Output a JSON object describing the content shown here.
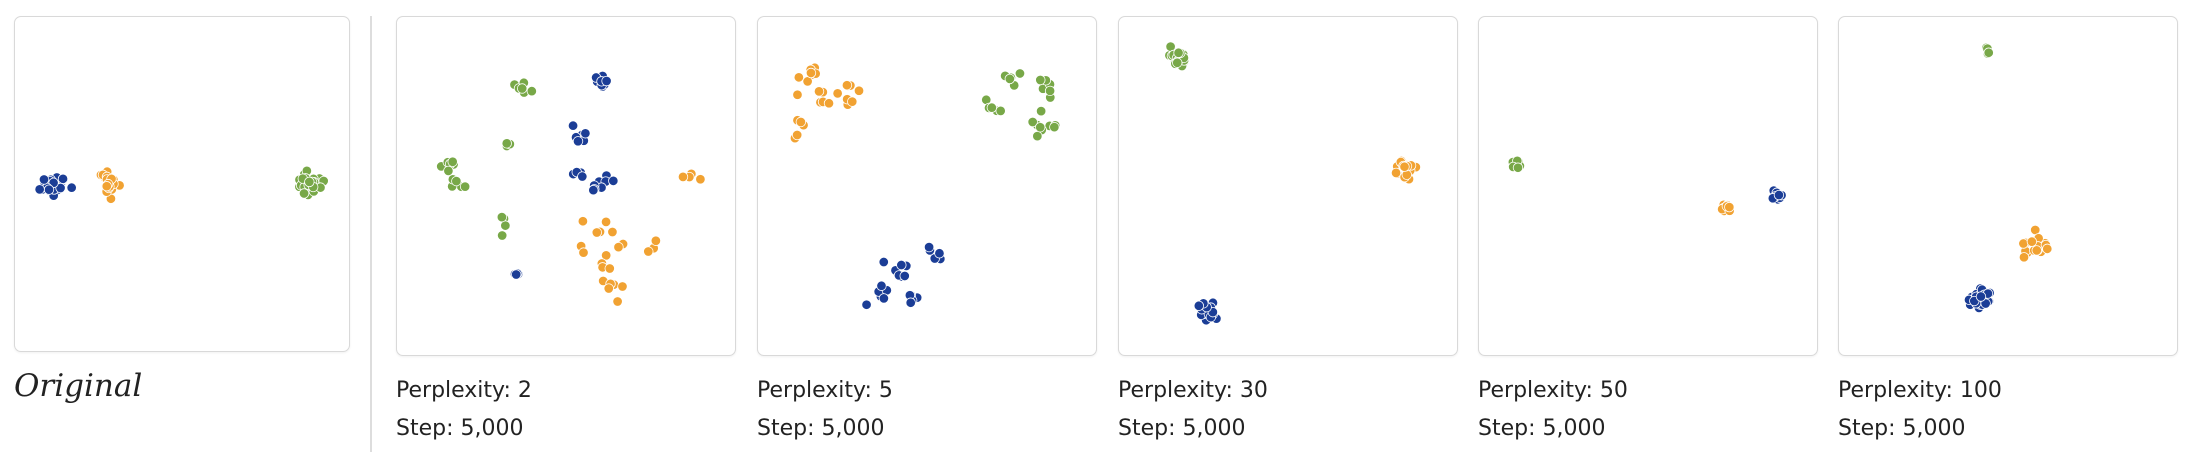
{
  "colors": {
    "blue": "#1b3d96",
    "orange": "#f1a232",
    "green": "#78a848",
    "panel_border": "#d9d9d9"
  },
  "original": {
    "label": "Original"
  },
  "chart_data": [
    {
      "id": "original",
      "type": "scatter",
      "title": "Original",
      "xlim": [
        0,
        1
      ],
      "ylim": [
        0,
        1
      ],
      "grid": false,
      "series": [
        {
          "color_key": "blue",
          "x": [
            0.12
          ],
          "y": [
            0.5
          ],
          "spread": [
            0.035
          ],
          "count": [
            26
          ]
        },
        {
          "color_key": "orange",
          "x": [
            0.28
          ],
          "y": [
            0.5
          ],
          "spread": [
            0.035
          ],
          "count": [
            26
          ]
        },
        {
          "color_key": "green",
          "x": [
            0.88
          ],
          "y": [
            0.5
          ],
          "spread": [
            0.035
          ],
          "count": [
            26
          ]
        }
      ]
    },
    {
      "id": "perp-2",
      "type": "scatter",
      "perplexity_label": "Perplexity: 2",
      "step_label": "Step: 5,000",
      "xlim": [
        0,
        1
      ],
      "ylim": [
        0,
        1
      ],
      "grid": false,
      "series": [
        {
          "color_key": "blue",
          "x": [
            0.6,
            0.54,
            0.54,
            0.62,
            0.58,
            0.36
          ],
          "y": [
            0.82,
            0.66,
            0.54,
            0.53,
            0.5,
            0.24
          ],
          "spread": [
            0.035,
            0.03,
            0.025,
            0.025,
            0.02,
            0.025
          ],
          "count": [
            8,
            6,
            4,
            5,
            3,
            4
          ]
        },
        {
          "color_key": "orange",
          "x": [
            0.88,
            0.6,
            0.76,
            0.62,
            0.64
          ],
          "y": [
            0.53,
            0.35,
            0.32,
            0.27,
            0.2
          ],
          "spread": [
            0.035,
            0.05,
            0.025,
            0.03,
            0.04
          ],
          "count": [
            5,
            9,
            3,
            4,
            6
          ]
        },
        {
          "color_key": "green",
          "x": [
            0.38,
            0.33,
            0.16,
            0.18,
            0.32
          ],
          "y": [
            0.78,
            0.62,
            0.56,
            0.5,
            0.4
          ],
          "spread": [
            0.03,
            0.02,
            0.04,
            0.03,
            0.03
          ],
          "count": [
            6,
            4,
            6,
            5,
            4
          ]
        }
      ]
    },
    {
      "id": "perp-5",
      "type": "scatter",
      "perplexity_label": "Perplexity: 5",
      "step_label": "Step: 5,000",
      "xlim": [
        0,
        1
      ],
      "ylim": [
        0,
        1
      ],
      "grid": false,
      "series": [
        {
          "color_key": "blue",
          "x": [
            0.4,
            0.52,
            0.36,
            0.46
          ],
          "y": [
            0.26,
            0.3,
            0.18,
            0.15
          ],
          "spread": [
            0.04,
            0.03,
            0.04,
            0.04
          ],
          "count": [
            7,
            5,
            6,
            5
          ]
        },
        {
          "color_key": "orange",
          "x": [
            0.15,
            0.19,
            0.27,
            0.12
          ],
          "y": [
            0.82,
            0.76,
            0.78,
            0.68
          ],
          "spread": [
            0.035,
            0.03,
            0.04,
            0.025
          ],
          "count": [
            9,
            5,
            9,
            5
          ]
        },
        {
          "color_key": "green",
          "x": [
            0.76,
            0.7,
            0.84,
            0.86
          ],
          "y": [
            0.82,
            0.73,
            0.78,
            0.68
          ],
          "spread": [
            0.035,
            0.03,
            0.035,
            0.04
          ],
          "count": [
            5,
            5,
            6,
            10
          ]
        }
      ]
    },
    {
      "id": "perp-30",
      "type": "scatter",
      "perplexity_label": "Perplexity: 30",
      "step_label": "Step: 5,000",
      "xlim": [
        0,
        1
      ],
      "ylim": [
        0,
        1
      ],
      "grid": false,
      "series": [
        {
          "color_key": "blue",
          "x": [
            0.26
          ],
          "y": [
            0.13
          ],
          "spread": [
            0.03
          ],
          "count": [
            22
          ]
        },
        {
          "color_key": "orange",
          "x": [
            0.84
          ],
          "y": [
            0.55
          ],
          "spread": [
            0.028
          ],
          "count": [
            22
          ]
        },
        {
          "color_key": "green",
          "x": [
            0.17
          ],
          "y": [
            0.88
          ],
          "spread": [
            0.03
          ],
          "count": [
            24
          ]
        }
      ]
    },
    {
      "id": "perp-50",
      "type": "scatter",
      "perplexity_label": "Perplexity: 50",
      "step_label": "Step: 5,000",
      "xlim": [
        0,
        1
      ],
      "ylim": [
        0,
        1
      ],
      "grid": false,
      "series": [
        {
          "color_key": "blue",
          "x": [
            0.88
          ],
          "y": [
            0.47
          ],
          "spread": [
            0.014
          ],
          "count": [
            12
          ]
        },
        {
          "color_key": "orange",
          "x": [
            0.73
          ],
          "y": [
            0.44
          ],
          "spread": [
            0.014
          ],
          "count": [
            12
          ]
        },
        {
          "color_key": "green",
          "x": [
            0.11
          ],
          "y": [
            0.56
          ],
          "spread": [
            0.012
          ],
          "count": [
            10
          ]
        }
      ]
    },
    {
      "id": "perp-100",
      "type": "scatter",
      "perplexity_label": "Perplexity: 100",
      "step_label": "Step: 5,000",
      "xlim": [
        0,
        1
      ],
      "ylim": [
        0,
        1
      ],
      "grid": false,
      "series": [
        {
          "color_key": "blue",
          "x": [
            0.42
          ],
          "y": [
            0.16
          ],
          "spread": [
            0.04
          ],
          "count": [
            26
          ]
        },
        {
          "color_key": "orange",
          "x": [
            0.57
          ],
          "y": [
            0.32
          ],
          "spread": [
            0.04
          ],
          "count": [
            18
          ]
        },
        {
          "color_key": "green",
          "x": [
            0.44
          ],
          "y": [
            0.9
          ],
          "spread": [
            0.008
          ],
          "count": [
            5
          ]
        }
      ]
    }
  ]
}
